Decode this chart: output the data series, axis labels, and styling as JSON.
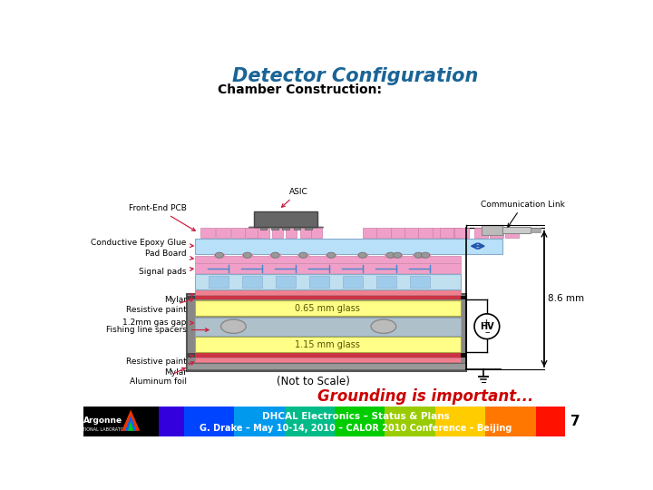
{
  "title": "Detector Configuration",
  "subtitle": "Chamber Construction:",
  "title_color": "#1a6496",
  "subtitle_color": "#000000",
  "footer_text1": "DHCAL Electronics – Status & Plans",
  "footer_text2": "G. Drake – May 10-14, 2010 – CALOR 2010 Conference – Beijing",
  "footer_page": "7",
  "grounding_text": "Grounding is important...",
  "not_to_scale": "(Not to Scale)",
  "dim_label": "8.6 mm",
  "glass1_label": "0.65 mm glass",
  "glass2_label": "1.15 mm glass",
  "hv_label": "HV",
  "background_color": "#ffffff",
  "label_color": "#CC2244",
  "asic_color": "#666666",
  "chip_color": "#F0A0C8",
  "epoxy_color": "#B8E0F8",
  "pad_pink": "#F0A0C8",
  "sig_blue": "#C0E0F0",
  "mylar_pink": "#F08090",
  "resist_red": "#CC3344",
  "glass_yellow": "#FFFF88",
  "gas_blue": "#C8E8F8",
  "frame_gray": "#888888",
  "alum_gray": "#999999"
}
